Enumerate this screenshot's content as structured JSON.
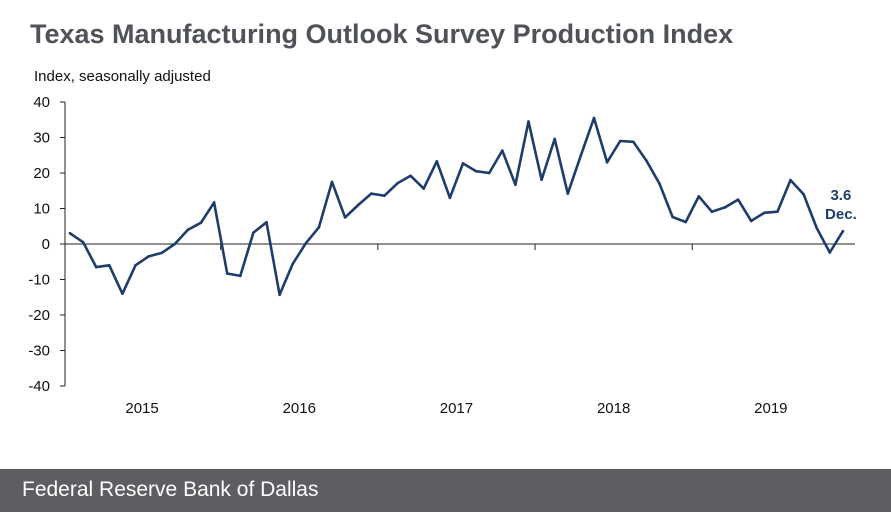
{
  "page_title": "Texas Manufacturing Outlook Survey Production Index",
  "footer": {
    "text": "Federal Reserve Bank of Dallas"
  },
  "chart_data": {
    "type": "line",
    "title": "Texas Manufacturing Outlook Survey Production Index",
    "ylabel": "Index, seasonally adjusted",
    "xlabel": "",
    "ylim": [
      -40,
      40
    ],
    "yticks": [
      40,
      30,
      20,
      10,
      0,
      -10,
      -20,
      -30,
      -40
    ],
    "ytick_labels": [
      "40",
      "30",
      "20",
      "10",
      "0",
      "-10",
      "-20",
      "-30",
      "-40"
    ],
    "years": [
      "2015",
      "2016",
      "2017",
      "2018",
      "2019"
    ],
    "x_start": "Jan 2015",
    "x_end": "Dec 2019",
    "series": [
      {
        "name": "Production Index",
        "color": "#1f3d6b",
        "values": [
          3.0,
          0.5,
          -6.5,
          -6.0,
          -14.0,
          -6.0,
          -3.5,
          -2.5,
          0.0,
          4.0,
          6.0,
          11.7,
          -8.3,
          -9.0,
          3.2,
          6.1,
          -14.3,
          -5.6,
          0.2,
          4.7,
          17.5,
          7.5,
          11.0,
          14.2,
          13.6,
          17.1,
          19.2,
          15.6,
          23.3,
          13.0,
          22.7,
          20.5,
          20.0,
          26.3,
          16.7,
          34.5,
          18.1,
          29.6,
          14.2,
          25.0,
          35.5,
          23.0,
          29.0,
          28.8,
          23.5,
          17.0,
          7.6,
          6.2,
          13.4,
          9.1,
          10.3,
          12.5,
          6.5,
          8.8,
          9.1,
          18.0,
          14.0,
          4.5,
          -2.4,
          3.6
        ]
      }
    ],
    "annotation": {
      "value": "3.6",
      "label": "Dec."
    }
  }
}
